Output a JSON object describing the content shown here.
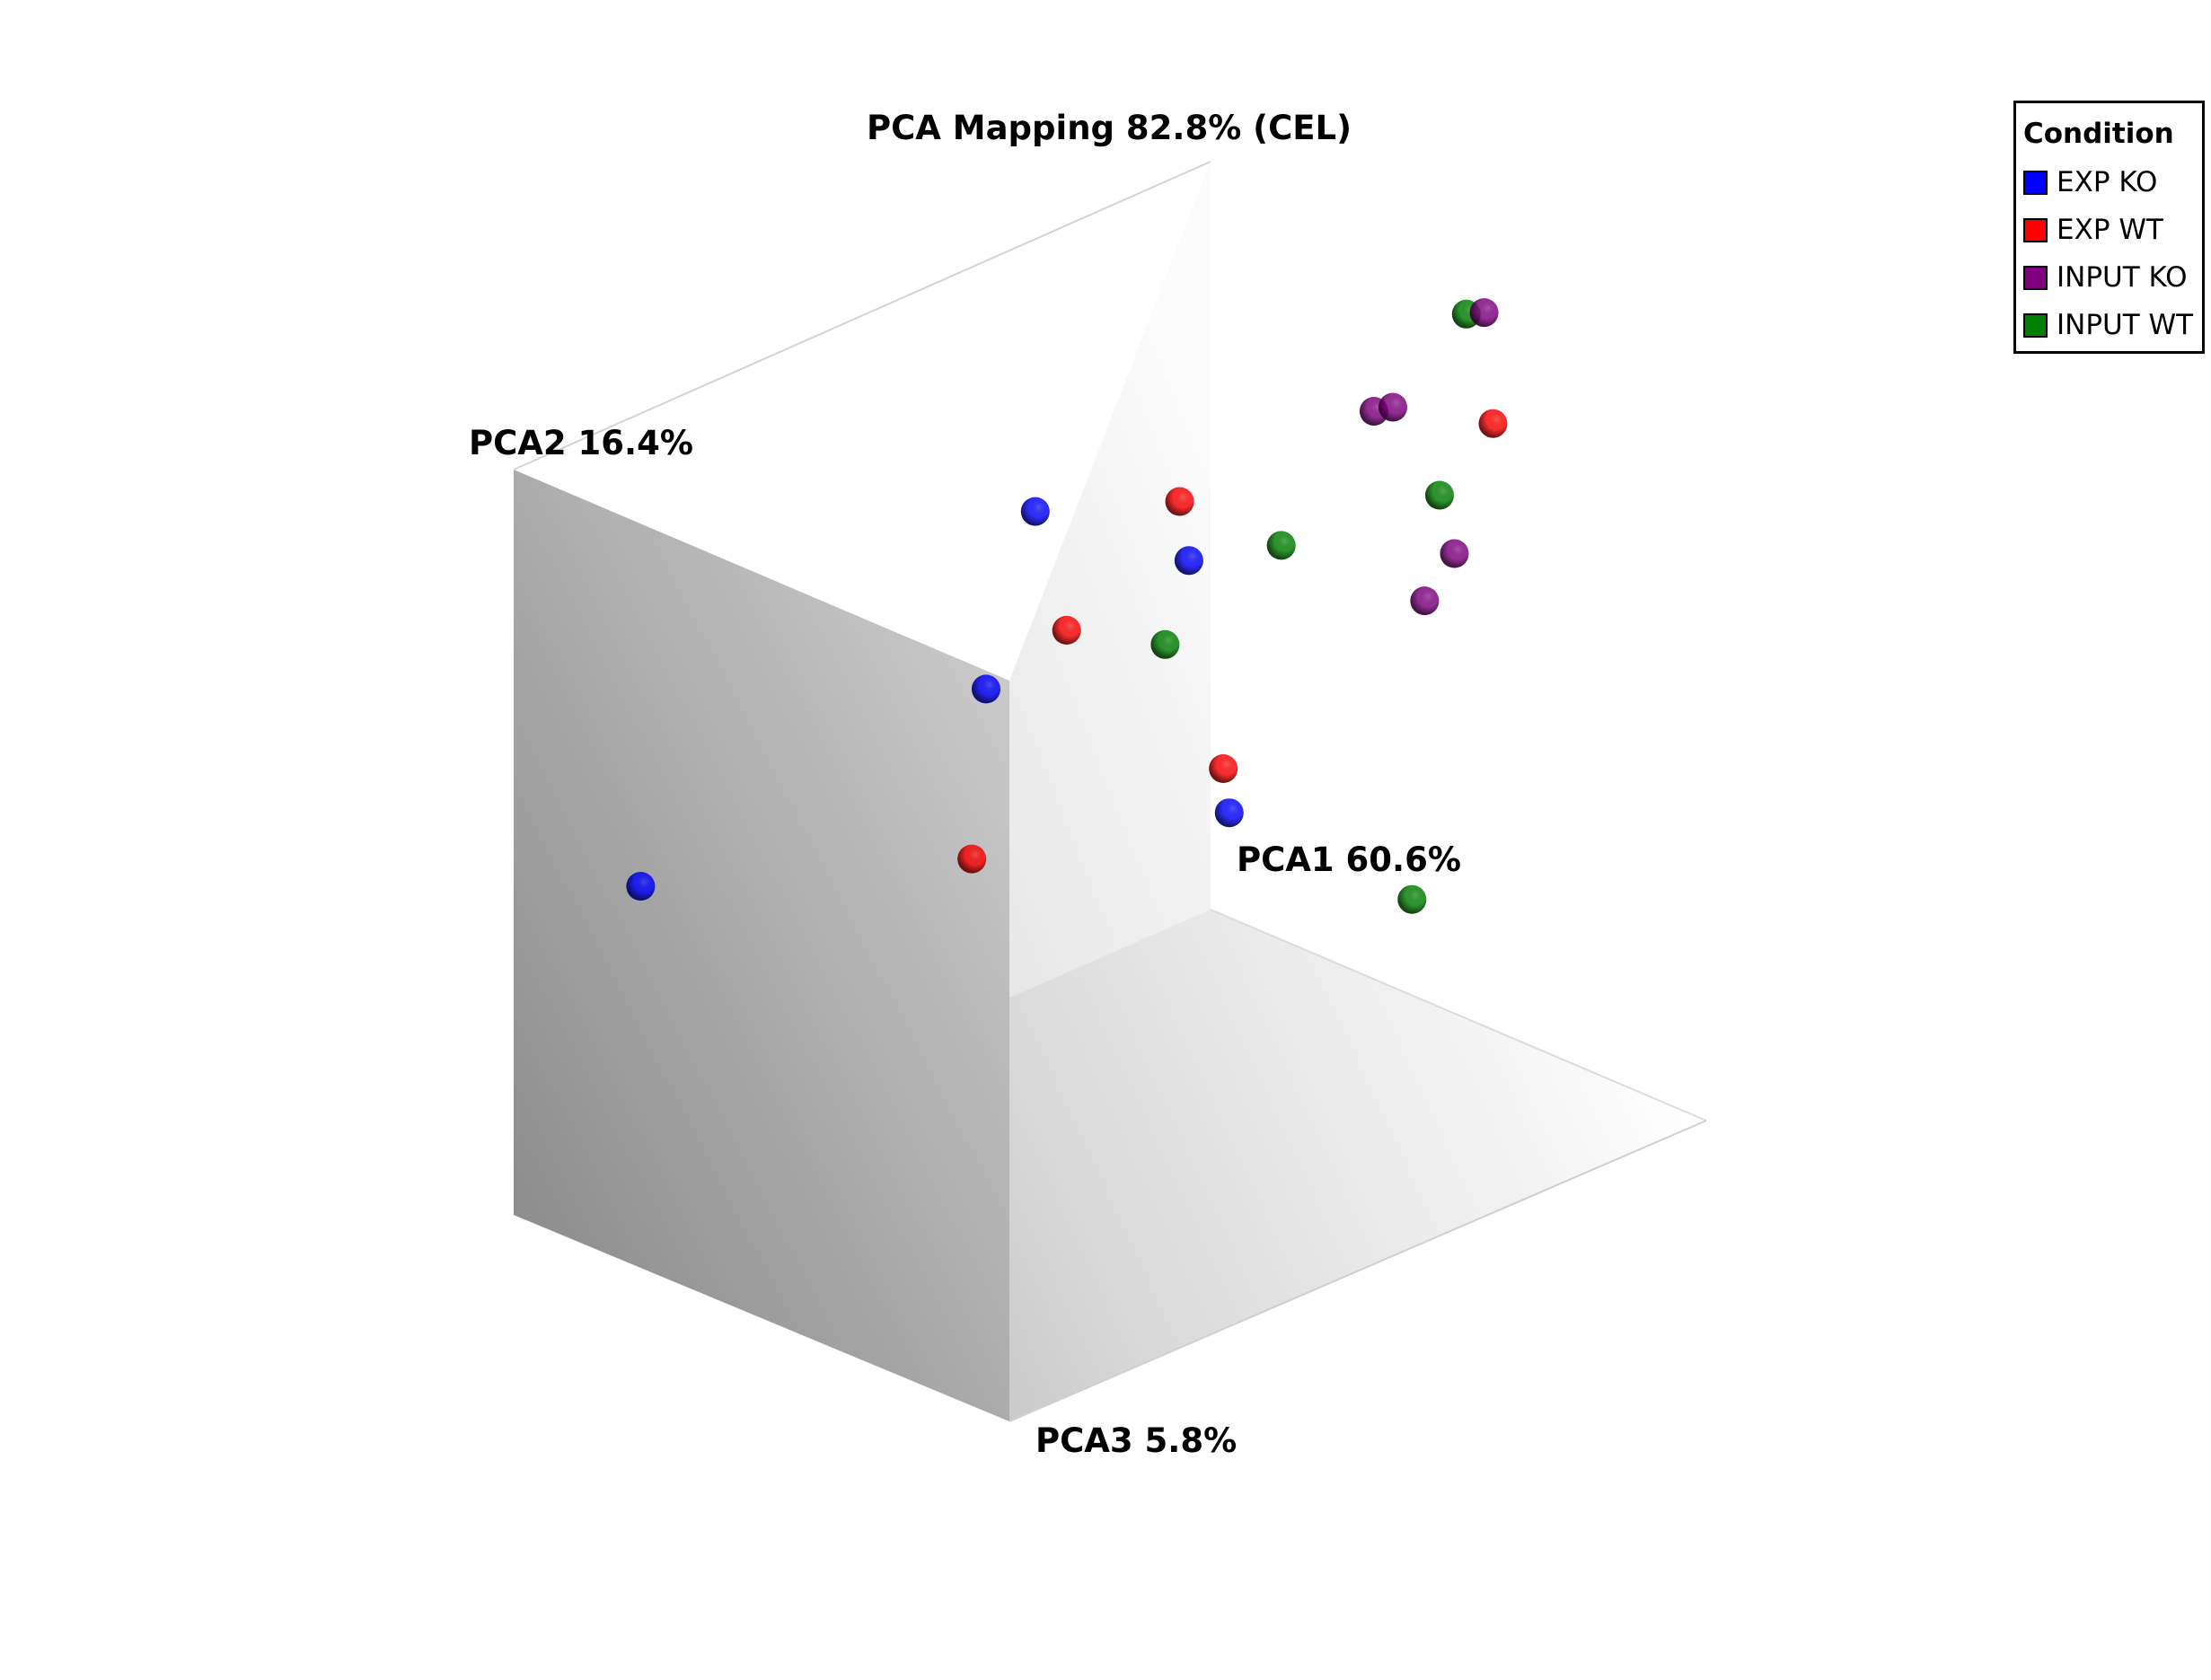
{
  "chart_data": {
    "type": "scatter",
    "title": "PCA Mapping 82.8% (CEL)",
    "axes": {
      "x_label": "PCA1 60.6%",
      "y_label": "PCA2 16.4%",
      "z_label": "PCA3 5.8%"
    },
    "legend": {
      "title": "Condition",
      "placement": "top-right",
      "entries": [
        {
          "name": "EXP KO",
          "color": "#0000ff"
        },
        {
          "name": "EXP WT",
          "color": "#ff0000"
        },
        {
          "name": "INPUT KO",
          "color": "#800080"
        },
        {
          "name": "INPUT WT",
          "color": "#008000"
        }
      ]
    },
    "grid": false,
    "x_range": [
      0,
      1
    ],
    "y_range": [
      0,
      1
    ],
    "z_range": [
      0,
      1
    ],
    "series": [
      {
        "name": "EXP KO",
        "color": "#0000ff",
        "points": [
          [
            0.04,
            0.48,
            0.2
          ],
          [
            0.5,
            0.57,
            0.25
          ],
          [
            0.72,
            0.68,
            0.35
          ],
          [
            0.72,
            0.66,
            0.04
          ],
          [
            0.6,
            0.46,
            0.6
          ]
        ]
      },
      {
        "name": "EXP WT",
        "color": "#ff0000",
        "points": [
          [
            0.6,
            0.85,
            0.5
          ],
          [
            0.95,
            0.85,
            0.64
          ],
          [
            0.58,
            0.63,
            0.3
          ],
          [
            0.62,
            0.5,
            0.56
          ],
          [
            0.38,
            0.43,
            0.39
          ]
        ]
      },
      {
        "name": "INPUT KO",
        "color": "#800080",
        "points": [
          [
            0.98,
            0.97,
            0.58
          ],
          [
            0.98,
            0.63,
            0.52
          ],
          [
            0.95,
            0.8,
            0.4
          ],
          [
            0.97,
            0.8,
            0.41
          ],
          [
            0.98,
            0.55,
            0.46
          ]
        ]
      },
      {
        "name": "INPUT WT",
        "color": "#008000",
        "points": [
          [
            0.99,
            0.95,
            0.53
          ],
          [
            0.7,
            0.57,
            0.33
          ],
          [
            0.98,
            0.7,
            0.49
          ],
          [
            0.76,
            0.72,
            0.48
          ],
          [
            0.72,
            0.35,
            0.8
          ]
        ]
      }
    ]
  }
}
